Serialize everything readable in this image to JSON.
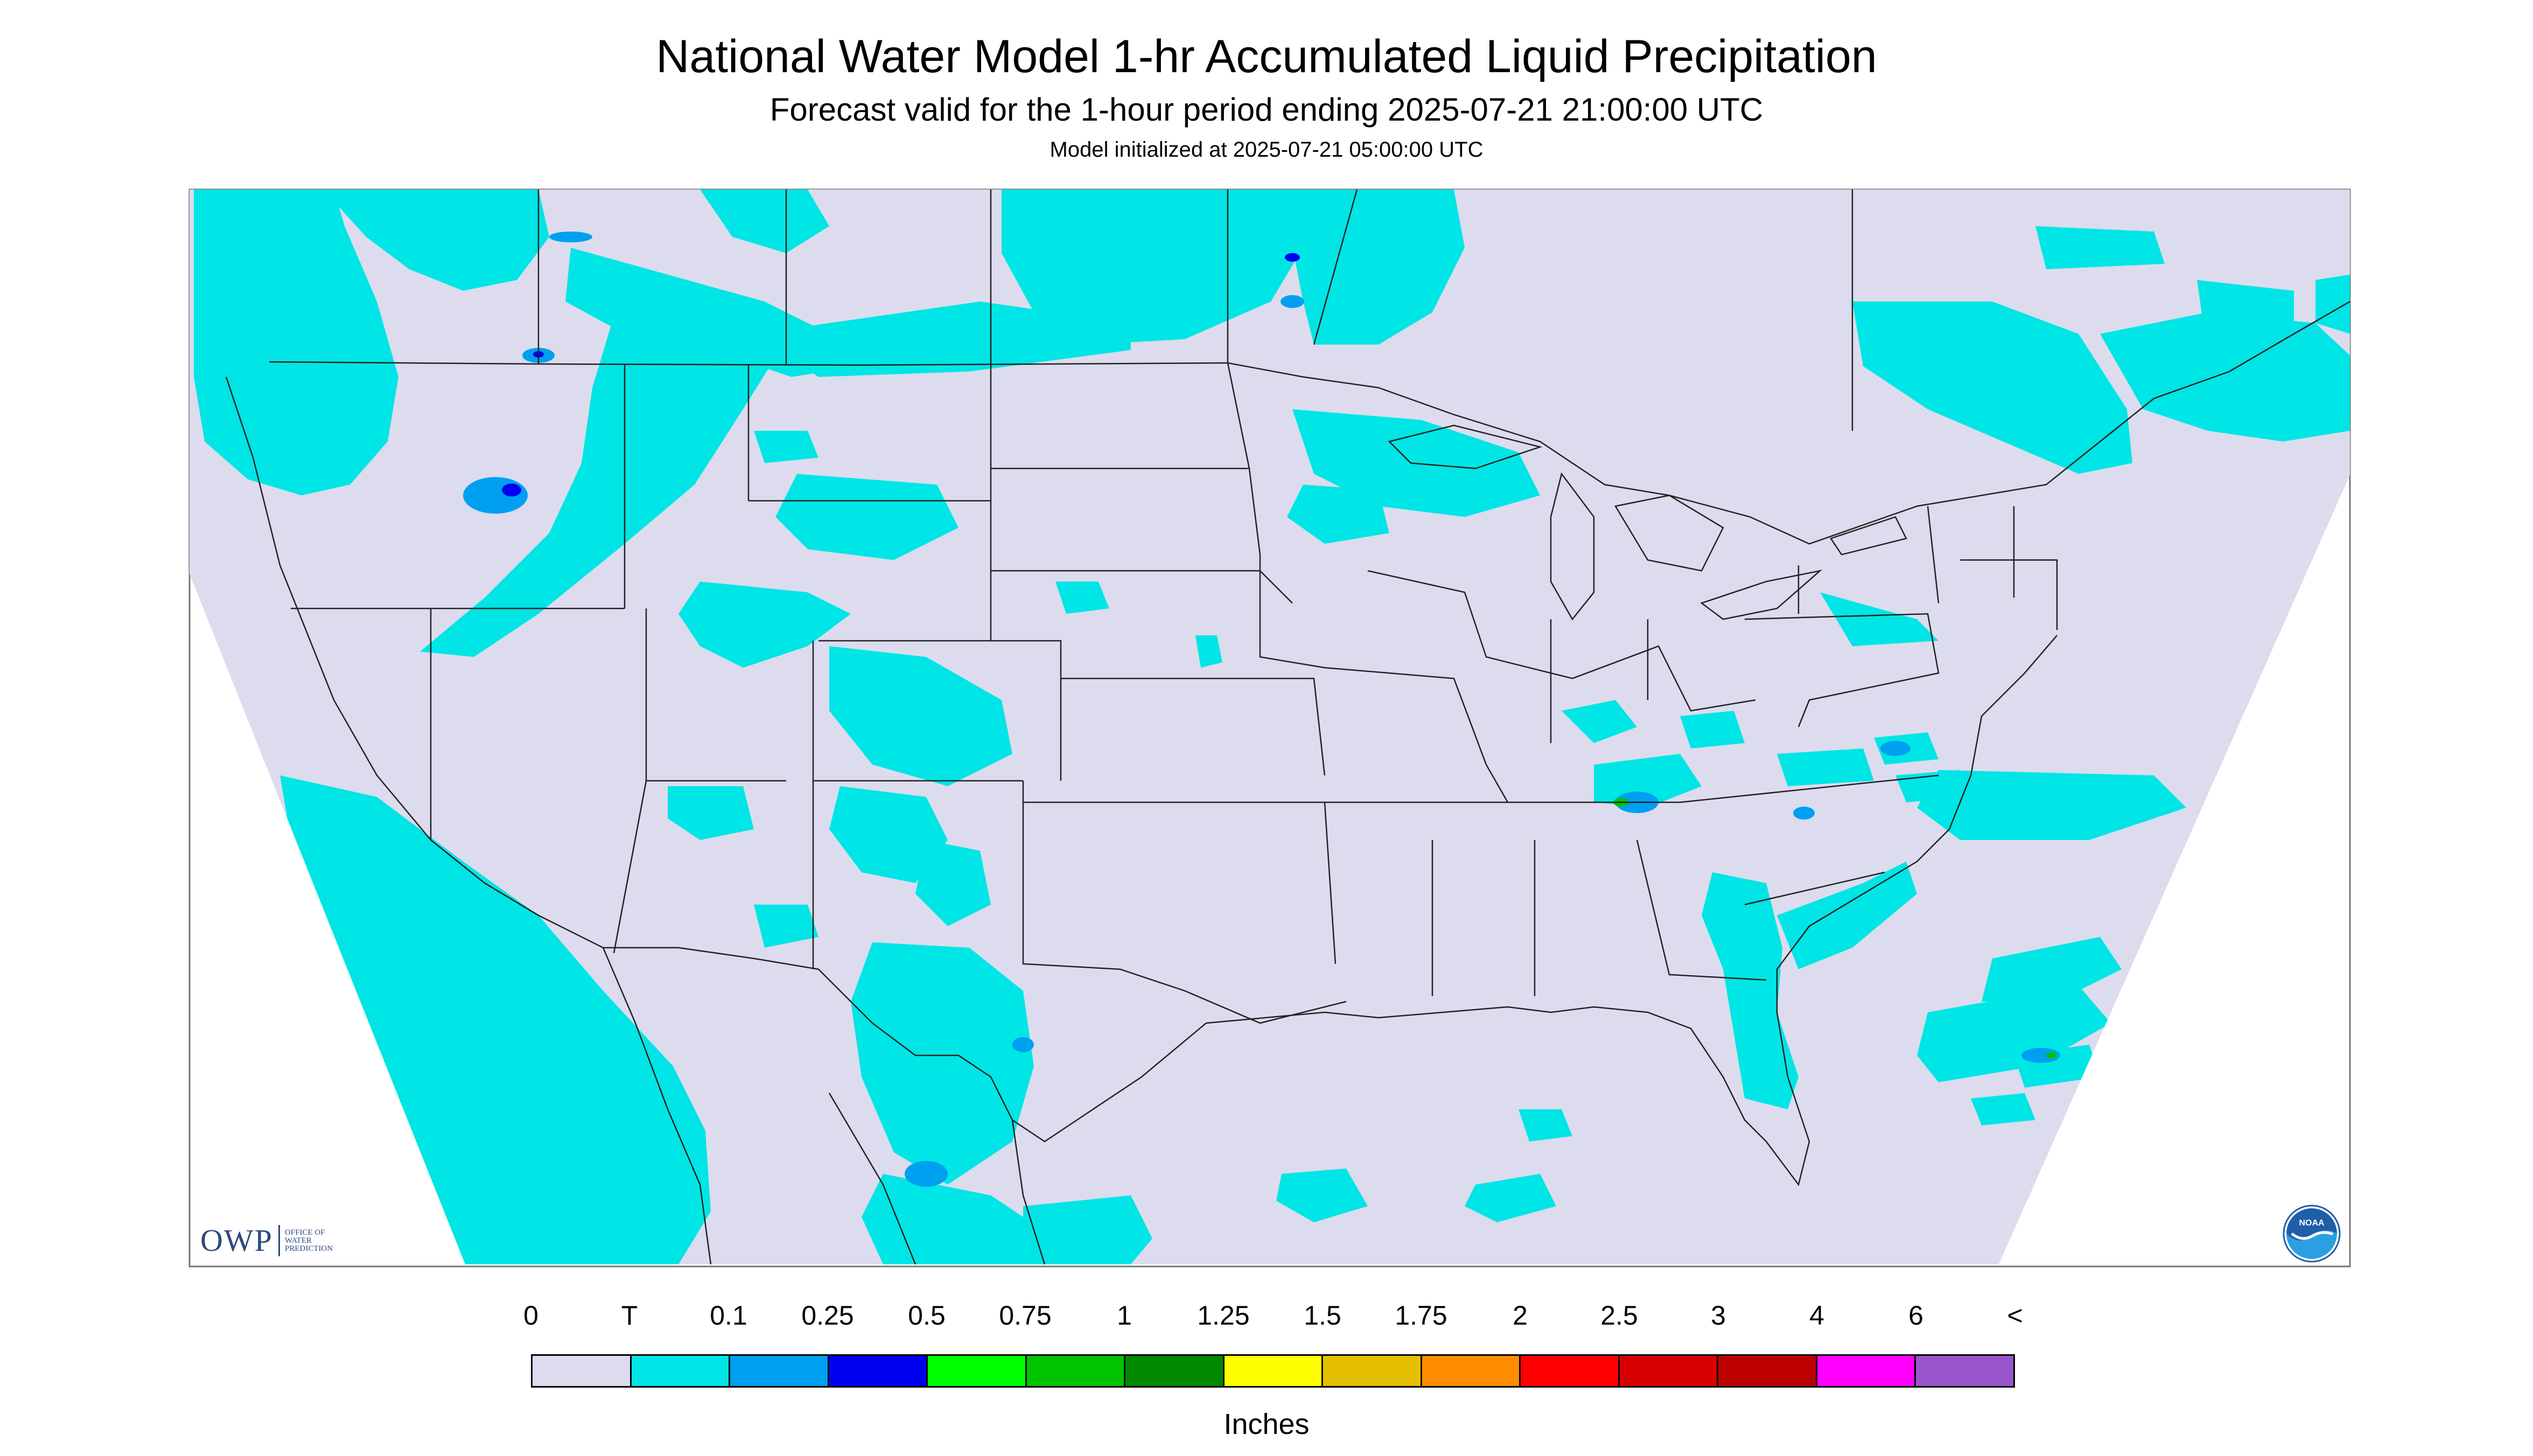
{
  "header": {
    "title": "National Water Model 1-hr Accumulated Liquid Precipitation",
    "subtitle": "Forecast valid for the 1-hour period ending 2025-07-21 21:00:00 UTC",
    "init_line": "Model initialized at 2025-07-21 05:00:00 UTC"
  },
  "logos": {
    "owp_mark": "OWP",
    "owp_text_lines": [
      "OFFICE OF",
      "WATER",
      "PREDICTION"
    ],
    "noaa_text": "NOAA",
    "noaa_icon": "noaa-logo-icon"
  },
  "legend": {
    "labels": [
      "0",
      "T",
      "0.1",
      "0.25",
      "0.5",
      "0.75",
      "1",
      "1.25",
      "1.5",
      "1.75",
      "2",
      "2.5",
      "3",
      "4",
      "6",
      "<"
    ],
    "colors": [
      "#dcdcee",
      "#00e5e5",
      "#00a0f0",
      "#0000f0",
      "#00ff00",
      "#00c400",
      "#008800",
      "#ffff00",
      "#e5c000",
      "#ff8c00",
      "#ff0000",
      "#d80000",
      "#bc0000",
      "#ff00ff",
      "#9955cc"
    ],
    "units": "Inches"
  },
  "map": {
    "background_color": "#dcdcee",
    "precip_color": "#00e5e5",
    "heavier_color": "#00a0f0",
    "heaviest_color": "#0000f0",
    "border_color": "#222222"
  }
}
